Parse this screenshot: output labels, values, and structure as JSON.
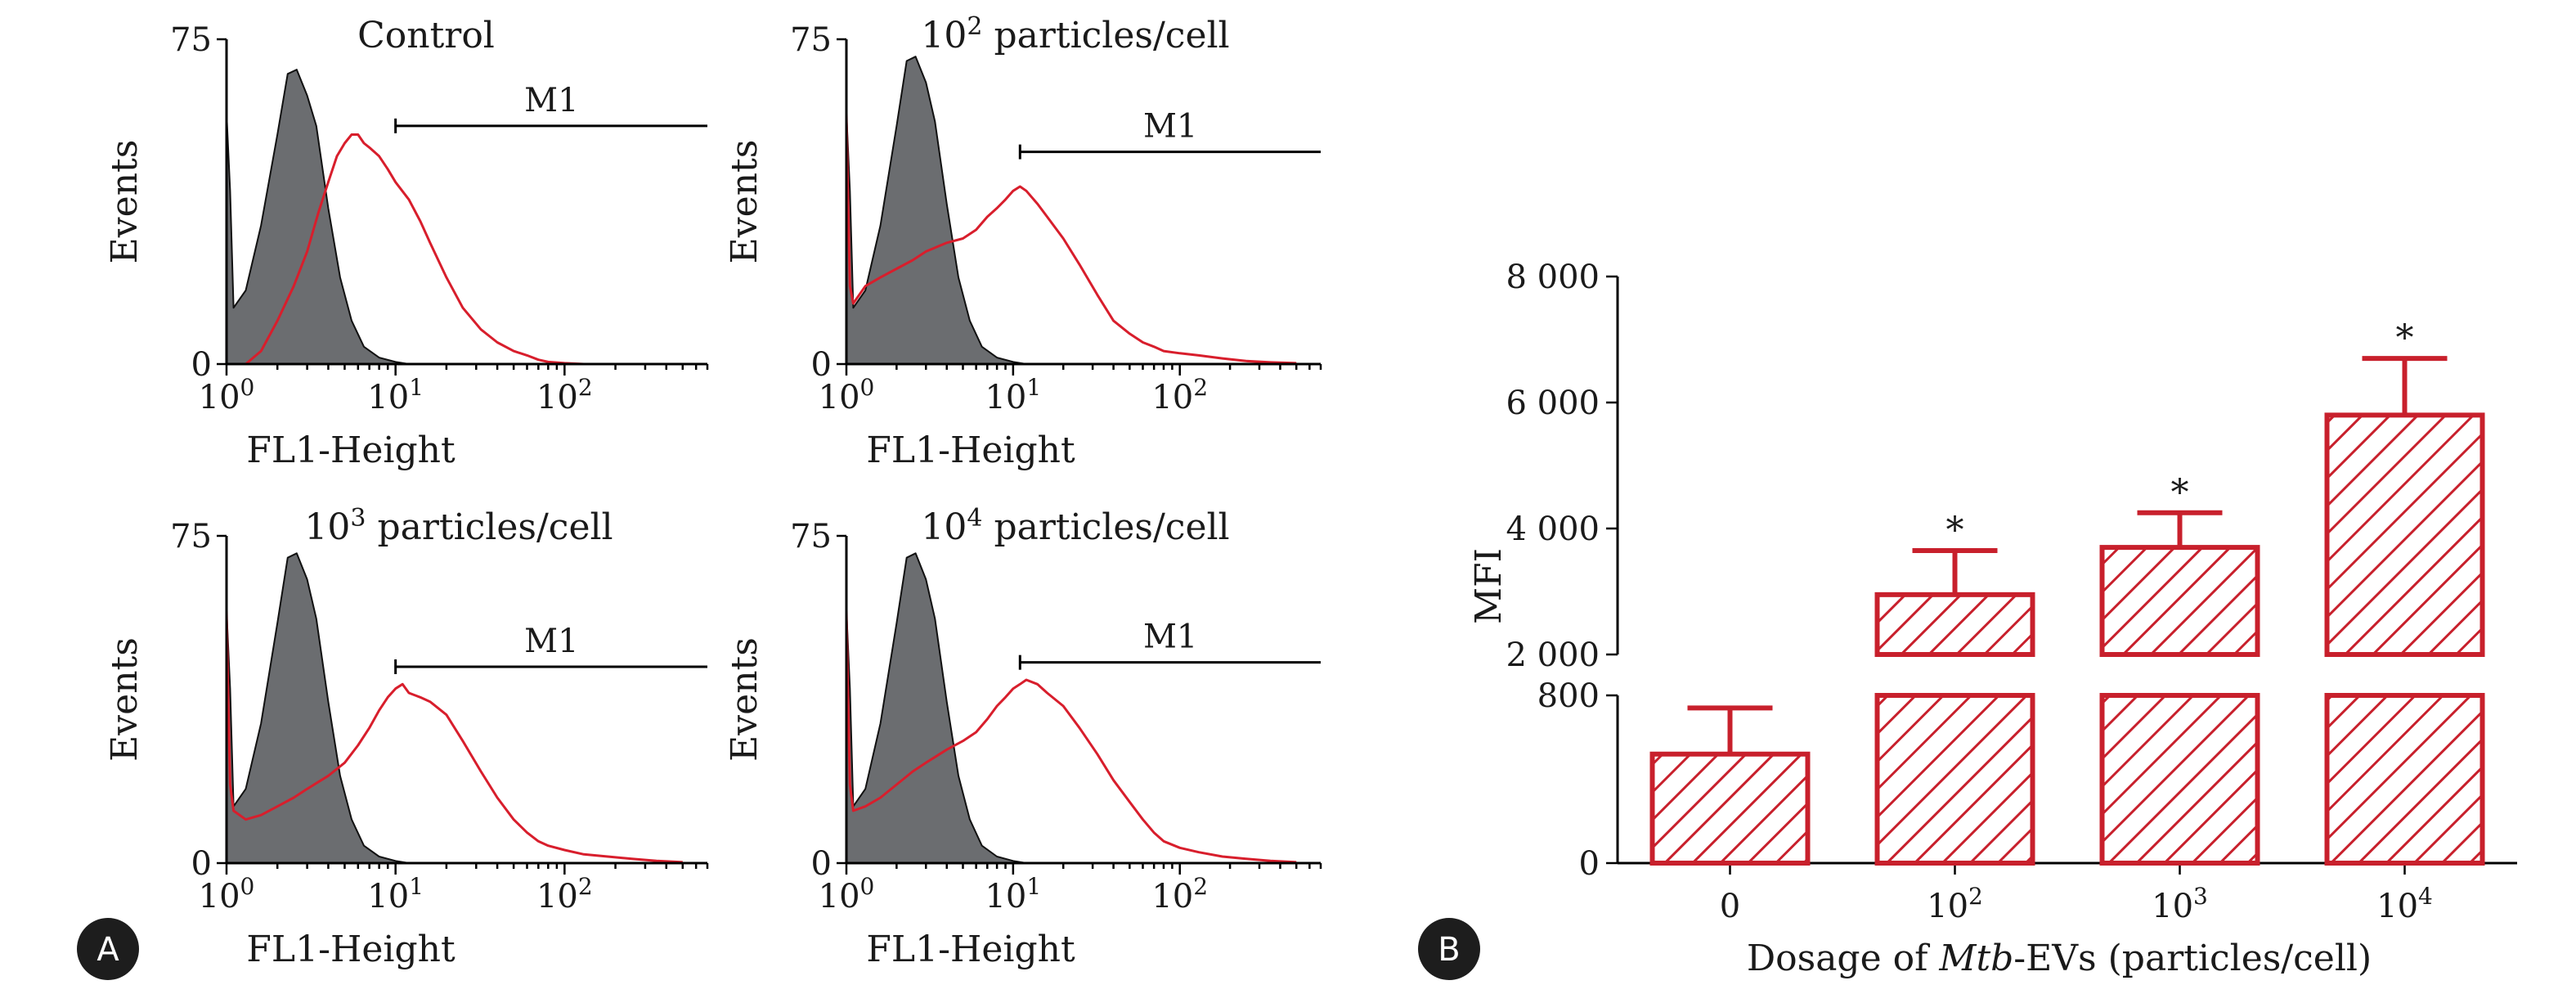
{
  "figure": {
    "panel_a_label": "A",
    "panel_b_label": "B"
  },
  "colors": {
    "treated_line": "#d81e2c",
    "control_fill": "#6b6d70",
    "bar_stroke": "#c8202c",
    "bar_hatch": "#c8202c",
    "axis": "#000000"
  },
  "chart_data": [
    {
      "type": "area",
      "title": "Control",
      "xlabel": "FL1-Height",
      "ylabel": "Events",
      "x_scale": "log",
      "xlim": [
        1,
        700
      ],
      "ylim": [
        0,
        75
      ],
      "xticks": [
        {
          "value": 1,
          "label": "10^0"
        },
        {
          "value": 10,
          "label": "10^1"
        },
        {
          "value": 100,
          "label": "10^2"
        }
      ],
      "yticks": [
        {
          "value": 0,
          "label": "0"
        },
        {
          "value": 75,
          "label": "75"
        }
      ],
      "gate": {
        "label": "M1",
        "from": 10,
        "to": 700,
        "level": 55
      },
      "series": [
        {
          "style": "filled",
          "x": [
            1,
            1.05,
            1.1,
            1.3,
            1.6,
            2.0,
            2.3,
            2.6,
            3.0,
            3.4,
            4.0,
            4.7,
            5.5,
            6.5,
            8.0,
            10,
            12
          ],
          "y": [
            58,
            40,
            13,
            17,
            32,
            53,
            67,
            68,
            62,
            55,
            36,
            20,
            10,
            4,
            1.5,
            0.5,
            0
          ]
        },
        {
          "style": "line",
          "x": [
            1.3,
            1.6,
            2.0,
            2.5,
            3.0,
            3.5,
            4.0,
            4.5,
            5.0,
            5.5,
            6.0,
            6.5,
            7.0,
            8.0,
            9.0,
            10,
            12,
            14,
            16,
            20,
            25,
            32,
            40,
            50,
            60,
            70,
            80,
            100,
            130
          ],
          "y": [
            0,
            3,
            10,
            18,
            26,
            35,
            42,
            48,
            51,
            53,
            53,
            51,
            50,
            48,
            45,
            42,
            38,
            33,
            28,
            20,
            13,
            8,
            5,
            3,
            2,
            1,
            0.5,
            0.2,
            0
          ]
        }
      ]
    },
    {
      "type": "area",
      "title": "10^2 particles/cell",
      "xlabel": "FL1-Height",
      "ylabel": "Events",
      "x_scale": "log",
      "xlim": [
        1,
        700
      ],
      "ylim": [
        0,
        75
      ],
      "xticks": [
        {
          "value": 1,
          "label": "10^0"
        },
        {
          "value": 10,
          "label": "10^1"
        },
        {
          "value": 100,
          "label": "10^2"
        }
      ],
      "yticks": [
        {
          "value": 0,
          "label": "0"
        },
        {
          "value": 75,
          "label": "75"
        }
      ],
      "gate": {
        "label": "M1",
        "from": 11,
        "to": 700,
        "level": 49
      },
      "series": [
        {
          "style": "filled",
          "x": [
            1,
            1.05,
            1.1,
            1.3,
            1.6,
            2.0,
            2.3,
            2.6,
            3.0,
            3.4,
            4.0,
            4.7,
            5.5,
            6.5,
            8.0,
            10,
            12
          ],
          "y": [
            58,
            40,
            13,
            17,
            32,
            55,
            70,
            71,
            65,
            56,
            37,
            20,
            10,
            4,
            1.5,
            0.5,
            0
          ]
        },
        {
          "style": "line",
          "x": [
            1,
            1.02,
            1.05,
            1.1,
            1.3,
            1.6,
            2.0,
            2.5,
            3.0,
            4.0,
            5.0,
            6.0,
            7.0,
            8.0,
            9.0,
            10,
            11,
            12,
            14,
            16,
            20,
            25,
            32,
            40,
            50,
            60,
            70,
            80,
            100,
            130,
            180,
            250,
            350,
            500
          ],
          "y": [
            58,
            40,
            18,
            14,
            18,
            20,
            22,
            24,
            26,
            28,
            29,
            31,
            34,
            36,
            38,
            40,
            41,
            40,
            37,
            34,
            29,
            23,
            16,
            10,
            7,
            5,
            4,
            3,
            2.5,
            2,
            1.3,
            0.7,
            0.4,
            0.2
          ]
        }
      ]
    },
    {
      "type": "area",
      "title": "10^3 particles/cell",
      "xlabel": "FL1-Height",
      "ylabel": "Events",
      "x_scale": "log",
      "xlim": [
        1,
        700
      ],
      "ylim": [
        0,
        75
      ],
      "xticks": [
        {
          "value": 1,
          "label": "10^0"
        },
        {
          "value": 10,
          "label": "10^1"
        },
        {
          "value": 100,
          "label": "10^2"
        }
      ],
      "yticks": [
        {
          "value": 0,
          "label": "0"
        },
        {
          "value": 75,
          "label": "75"
        }
      ],
      "gate": {
        "label": "M1",
        "from": 10,
        "to": 700,
        "level": 45
      },
      "series": [
        {
          "style": "filled",
          "x": [
            1,
            1.05,
            1.1,
            1.3,
            1.6,
            2.0,
            2.3,
            2.6,
            3.0,
            3.4,
            4.0,
            4.7,
            5.5,
            6.5,
            8.0,
            10,
            12
          ],
          "y": [
            58,
            40,
            13,
            17,
            32,
            55,
            70,
            71,
            65,
            56,
            37,
            20,
            10,
            4,
            1.5,
            0.5,
            0
          ]
        },
        {
          "style": "line",
          "x": [
            1,
            1.02,
            1.05,
            1.1,
            1.3,
            1.6,
            2.0,
            2.5,
            3.0,
            4.0,
            5.0,
            6.0,
            7.0,
            8.0,
            9.0,
            10,
            11,
            12,
            14,
            16,
            20,
            25,
            32,
            40,
            50,
            60,
            70,
            80,
            100,
            130,
            180,
            250,
            350,
            500
          ],
          "y": [
            58,
            40,
            18,
            12,
            10,
            11,
            13,
            15,
            17,
            20,
            23,
            27,
            31,
            35,
            38,
            40,
            41,
            39,
            38,
            37,
            34,
            28,
            21,
            15,
            10,
            7,
            5,
            4,
            3,
            2,
            1.5,
            1,
            0.5,
            0.2
          ]
        }
      ]
    },
    {
      "type": "area",
      "title": "10^4 particles/cell",
      "xlabel": "FL1-Height",
      "ylabel": "Events",
      "x_scale": "log",
      "xlim": [
        1,
        700
      ],
      "ylim": [
        0,
        75
      ],
      "xticks": [
        {
          "value": 1,
          "label": "10^0"
        },
        {
          "value": 10,
          "label": "10^1"
        },
        {
          "value": 100,
          "label": "10^2"
        }
      ],
      "yticks": [
        {
          "value": 0,
          "label": "0"
        },
        {
          "value": 75,
          "label": "75"
        }
      ],
      "gate": {
        "label": "M1",
        "from": 11,
        "to": 700,
        "level": 46
      },
      "series": [
        {
          "style": "filled",
          "x": [
            1,
            1.05,
            1.1,
            1.3,
            1.6,
            2.0,
            2.3,
            2.6,
            3.0,
            3.4,
            4.0,
            4.7,
            5.5,
            6.5,
            8.0,
            10,
            12
          ],
          "y": [
            58,
            40,
            13,
            17,
            32,
            55,
            70,
            71,
            65,
            56,
            37,
            20,
            10,
            4,
            1.5,
            0.5,
            0
          ]
        },
        {
          "style": "line",
          "x": [
            1,
            1.02,
            1.05,
            1.1,
            1.3,
            1.6,
            2.0,
            2.5,
            3.0,
            4.0,
            5.0,
            6.0,
            7.0,
            8.0,
            9.0,
            10,
            11,
            12,
            14,
            16,
            20,
            25,
            32,
            40,
            50,
            60,
            70,
            80,
            100,
            130,
            180,
            250,
            350,
            500
          ],
          "y": [
            58,
            40,
            18,
            12,
            13,
            15,
            18,
            21,
            23,
            26,
            28,
            30,
            33,
            36,
            38,
            40,
            41,
            42,
            41,
            39,
            36,
            31,
            25,
            19,
            14,
            10,
            7,
            5,
            3.5,
            2.5,
            1.5,
            1,
            0.5,
            0.2
          ]
        }
      ]
    },
    {
      "type": "bar",
      "title": "",
      "xlabel_parts": [
        "Dosage of ",
        "Mtb",
        "-EVs (particles/cell)"
      ],
      "ylabel": "MFI",
      "categories": [
        "0",
        "10^2",
        "10^3",
        "10^4"
      ],
      "values": [
        520,
        2950,
        3700,
        5800
      ],
      "errors": [
        220,
        700,
        550,
        900
      ],
      "significance": [
        "",
        "*",
        "*",
        "*"
      ],
      "y_axis_break": {
        "lower_range": [
          0,
          800
        ],
        "upper_range": [
          2000,
          8000
        ]
      },
      "yticks": [
        {
          "value": 0,
          "label": "0"
        },
        {
          "value": 800,
          "label": "800"
        },
        {
          "value": 2000,
          "label": "2 000"
        },
        {
          "value": 4000,
          "label": "4 000"
        },
        {
          "value": 6000,
          "label": "6 000"
        },
        {
          "value": 8000,
          "label": "8 000"
        }
      ],
      "fill": "hatched"
    }
  ]
}
